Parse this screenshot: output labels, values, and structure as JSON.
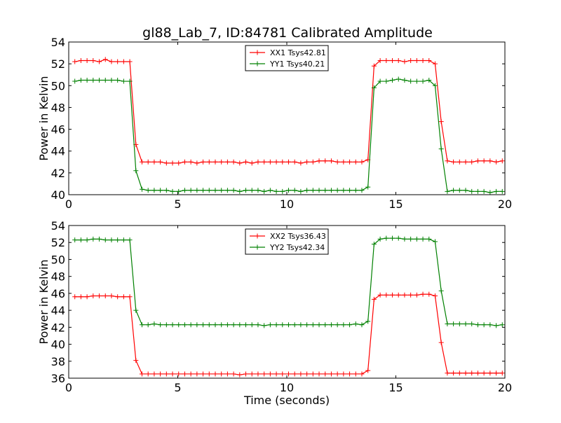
{
  "title": "gl88_Lab_7, ID:84781 Calibrated Amplitude",
  "colors": {
    "red": "#ff0000",
    "green": "#008000",
    "axes": "#000000",
    "background": "#ffffff"
  },
  "chart_data": [
    {
      "type": "line",
      "ylabel": "Power in Kelvin",
      "xlabel": "",
      "xlim": [
        0,
        20
      ],
      "ylim": [
        40,
        54
      ],
      "xticks": [
        0,
        5,
        10,
        15,
        20
      ],
      "yticks": [
        40,
        42,
        44,
        46,
        48,
        50,
        52,
        54
      ],
      "legend_position": "top-center",
      "grid": false,
      "x": [
        0.28,
        0.56,
        0.84,
        1.12,
        1.4,
        1.68,
        1.96,
        2.24,
        2.52,
        2.8,
        3.08,
        3.36,
        3.64,
        3.92,
        4.2,
        4.48,
        4.76,
        5.04,
        5.32,
        5.6,
        5.88,
        6.16,
        6.44,
        6.72,
        7.0,
        7.28,
        7.56,
        7.84,
        8.12,
        8.4,
        8.68,
        8.96,
        9.24,
        9.52,
        9.8,
        10.08,
        10.36,
        10.64,
        10.92,
        11.2,
        11.48,
        11.76,
        12.04,
        12.32,
        12.6,
        12.88,
        13.16,
        13.44,
        13.72,
        14.0,
        14.28,
        14.56,
        14.84,
        15.12,
        15.4,
        15.68,
        15.96,
        16.24,
        16.52,
        16.8,
        17.08,
        17.36,
        17.64,
        17.92,
        18.2,
        18.48,
        18.76,
        19.04,
        19.32,
        19.6,
        19.88
      ],
      "series": [
        {
          "name": "XX1 Tsys42.81",
          "color": "#ff0000",
          "values": [
            52.2,
            52.3,
            52.3,
            52.3,
            52.2,
            52.4,
            52.2,
            52.2,
            52.2,
            52.2,
            44.6,
            43.0,
            43.0,
            43.0,
            43.0,
            42.9,
            42.9,
            42.9,
            43.0,
            43.0,
            42.9,
            43.0,
            43.0,
            43.0,
            43.0,
            43.0,
            43.0,
            42.9,
            43.0,
            42.9,
            43.0,
            43.0,
            43.0,
            43.0,
            43.0,
            43.0,
            43.0,
            42.9,
            43.0,
            43.0,
            43.1,
            43.1,
            43.1,
            43.0,
            43.0,
            43.0,
            43.0,
            43.0,
            43.2,
            51.8,
            52.3,
            52.3,
            52.3,
            52.3,
            52.2,
            52.3,
            52.3,
            52.3,
            52.3,
            52.0,
            46.7,
            43.1,
            43.0,
            43.0,
            43.0,
            43.0,
            43.1,
            43.1,
            43.1,
            43.0,
            43.1
          ]
        },
        {
          "name": "YY1 Tsys40.21",
          "color": "#008000",
          "values": [
            50.4,
            50.5,
            50.5,
            50.5,
            50.5,
            50.5,
            50.5,
            50.5,
            50.4,
            50.4,
            42.2,
            40.5,
            40.4,
            40.4,
            40.4,
            40.4,
            40.3,
            40.3,
            40.4,
            40.4,
            40.4,
            40.4,
            40.4,
            40.4,
            40.4,
            40.4,
            40.4,
            40.3,
            40.4,
            40.4,
            40.4,
            40.3,
            40.4,
            40.3,
            40.3,
            40.4,
            40.4,
            40.3,
            40.4,
            40.4,
            40.4,
            40.4,
            40.4,
            40.4,
            40.4,
            40.4,
            40.4,
            40.4,
            40.7,
            49.8,
            50.4,
            50.4,
            50.5,
            50.6,
            50.5,
            50.4,
            50.4,
            50.4,
            50.5,
            50.0,
            44.2,
            40.3,
            40.4,
            40.4,
            40.4,
            40.3,
            40.3,
            40.3,
            40.2,
            40.3,
            40.3
          ]
        }
      ]
    },
    {
      "type": "line",
      "ylabel": "Power in Kelvin",
      "xlabel": "Time (seconds)",
      "xlim": [
        0,
        20
      ],
      "ylim": [
        36,
        54
      ],
      "xticks": [
        0,
        5,
        10,
        15,
        20
      ],
      "yticks": [
        36,
        38,
        40,
        42,
        44,
        46,
        48,
        50,
        52,
        54
      ],
      "legend_position": "top-center",
      "grid": false,
      "x": [
        0.28,
        0.56,
        0.84,
        1.12,
        1.4,
        1.68,
        1.96,
        2.24,
        2.52,
        2.8,
        3.08,
        3.36,
        3.64,
        3.92,
        4.2,
        4.48,
        4.76,
        5.04,
        5.32,
        5.6,
        5.88,
        6.16,
        6.44,
        6.72,
        7.0,
        7.28,
        7.56,
        7.84,
        8.12,
        8.4,
        8.68,
        8.96,
        9.24,
        9.52,
        9.8,
        10.08,
        10.36,
        10.64,
        10.92,
        11.2,
        11.48,
        11.76,
        12.04,
        12.32,
        12.6,
        12.88,
        13.16,
        13.44,
        13.72,
        14.0,
        14.28,
        14.56,
        14.84,
        15.12,
        15.4,
        15.68,
        15.96,
        16.24,
        16.52,
        16.8,
        17.08,
        17.36,
        17.64,
        17.92,
        18.2,
        18.48,
        18.76,
        19.04,
        19.32,
        19.6,
        19.88
      ],
      "series": [
        {
          "name": "XX2 Tsys36.43",
          "color": "#ff0000",
          "values": [
            45.6,
            45.6,
            45.6,
            45.7,
            45.7,
            45.7,
            45.7,
            45.6,
            45.6,
            45.6,
            38.1,
            36.5,
            36.5,
            36.5,
            36.5,
            36.5,
            36.5,
            36.5,
            36.5,
            36.5,
            36.5,
            36.5,
            36.5,
            36.5,
            36.5,
            36.5,
            36.5,
            36.4,
            36.5,
            36.5,
            36.5,
            36.5,
            36.5,
            36.5,
            36.5,
            36.5,
            36.5,
            36.5,
            36.5,
            36.5,
            36.5,
            36.5,
            36.5,
            36.5,
            36.5,
            36.5,
            36.5,
            36.5,
            36.9,
            45.3,
            45.8,
            45.8,
            45.8,
            45.8,
            45.8,
            45.8,
            45.8,
            45.9,
            45.9,
            45.7,
            40.2,
            36.6,
            36.6,
            36.6,
            36.6,
            36.6,
            36.6,
            36.6,
            36.6,
            36.6,
            36.6
          ]
        },
        {
          "name": "YY2 Tsys42.34",
          "color": "#008000",
          "values": [
            52.3,
            52.3,
            52.3,
            52.4,
            52.4,
            52.3,
            52.3,
            52.3,
            52.3,
            52.3,
            44.0,
            42.3,
            42.3,
            42.4,
            42.3,
            42.3,
            42.3,
            42.3,
            42.3,
            42.3,
            42.3,
            42.3,
            42.3,
            42.3,
            42.3,
            42.3,
            42.3,
            42.3,
            42.3,
            42.3,
            42.3,
            42.2,
            42.3,
            42.3,
            42.3,
            42.3,
            42.3,
            42.3,
            42.3,
            42.3,
            42.3,
            42.3,
            42.3,
            42.3,
            42.3,
            42.3,
            42.4,
            42.3,
            42.7,
            51.8,
            52.4,
            52.5,
            52.5,
            52.5,
            52.4,
            52.4,
            52.4,
            52.4,
            52.4,
            52.1,
            46.3,
            42.4,
            42.4,
            42.4,
            42.4,
            42.4,
            42.3,
            42.3,
            42.3,
            42.2,
            42.3
          ]
        }
      ]
    }
  ]
}
